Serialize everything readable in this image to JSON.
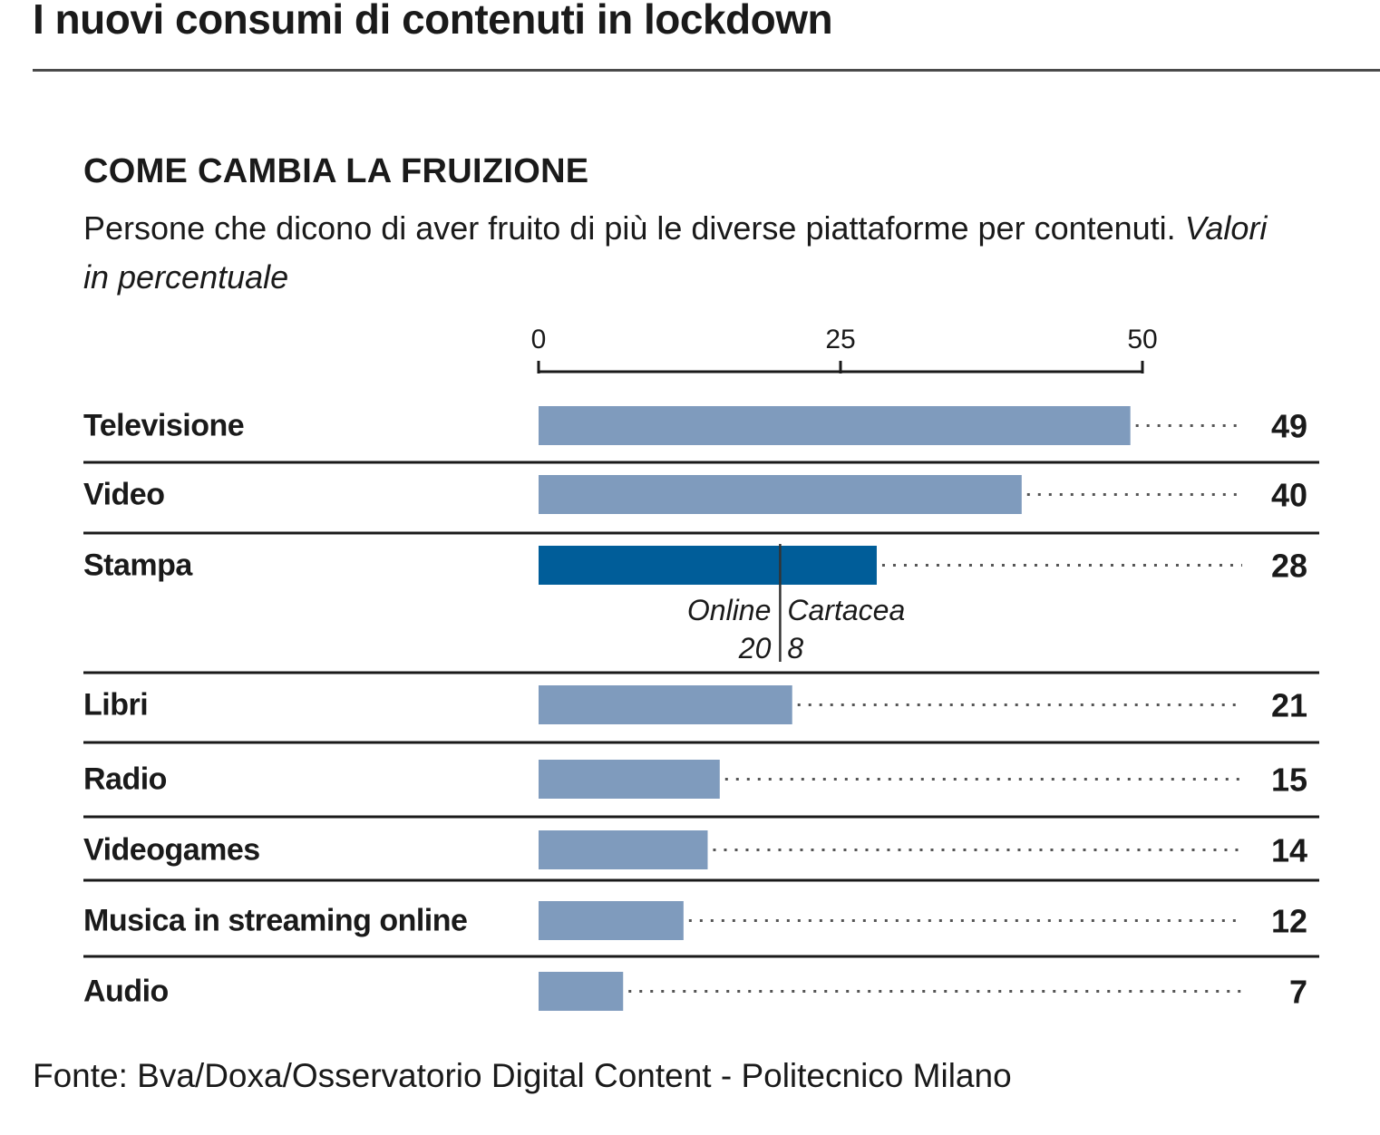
{
  "title": "I nuovi consumi di contenuti in lockdown",
  "section_title": "COME CAMBIA LA FRUIZIONE",
  "subtitle": "Persone che dicono di aver fruito di più le diverse piattaforme per contenuti.",
  "unit_note": "Valori in percentuale",
  "source": "Fonte: Bva/Doxa/Osservatorio Digital Content - Politecnico Milano",
  "colors": {
    "bar": "#7f9bbd",
    "bar_highlight": "#005d99",
    "rule": "#1a1a1a",
    "leader": "#555555"
  },
  "chart_data": {
    "type": "bar",
    "orientation": "horizontal",
    "categories": [
      "Televisione",
      "Video",
      "Stampa",
      "Libri",
      "Radio",
      "Videogames",
      "Musica in streaming online",
      "Audio"
    ],
    "values": [
      49,
      40,
      28,
      21,
      15,
      14,
      12,
      7
    ],
    "value_labels": [
      "49",
      "40",
      "28",
      "21",
      "15",
      "14",
      "12",
      "7"
    ],
    "xlim": [
      0,
      50
    ],
    "xticks": [
      0,
      25,
      50
    ],
    "grid": false,
    "legend": "none",
    "highlight": "Stampa",
    "breakdown": {
      "category": "Stampa",
      "parts": [
        {
          "name": "Online",
          "value": 20
        },
        {
          "name": "Cartacea",
          "value": 8
        }
      ]
    }
  }
}
